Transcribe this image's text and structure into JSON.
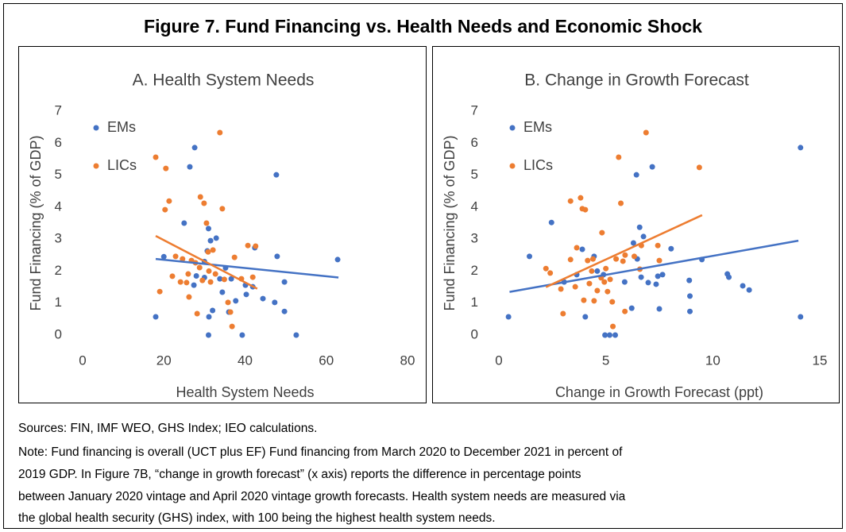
{
  "title": "Figure 7. Fund Financing vs. Health Needs and Economic Shock",
  "chart_data": [
    {
      "type": "scatter",
      "title": "A. Health System Needs",
      "x_label": "Health System Needs",
      "y_label": "Fund Financing (% of GDP)",
      "xlim": [
        0,
        80
      ],
      "xticks": [
        0,
        20,
        40,
        60,
        80
      ],
      "ylim": [
        0,
        7
      ],
      "yticks": [
        0,
        1,
        2,
        3,
        4,
        5,
        6,
        7
      ],
      "legend": "upper left",
      "grid": false,
      "series": [
        {
          "name": "EMs",
          "color": "#4472c4",
          "x": [
            18,
            20,
            25,
            27.4,
            28,
            30,
            30.7,
            31,
            31.5,
            31,
            31.1,
            32,
            26.4,
            27.6,
            32.9,
            33.8,
            34.4,
            35.2,
            36,
            36.6,
            37.7,
            39.3,
            40.1,
            40.3,
            41.9,
            42.4,
            44.4,
            47.3,
            47.9,
            47.7,
            49.7,
            49.7,
            52.6,
            62.8,
            30
          ],
          "values": [
            0.57,
            2.45,
            3.5,
            1.56,
            1.85,
            2.3,
            2.63,
            3.33,
            2.95,
            0,
            0.57,
            0.77,
            5.26,
            5.86,
            3.03,
            1.76,
            1.34,
            2.1,
            0.72,
            1.76,
            1.07,
            0,
            1.56,
            1.27,
            1.51,
            2.73,
            1.14,
            1.02,
            2.46,
            5.01,
            1.66,
            0.74,
            0,
            2.36,
            1.8
          ],
          "trend": {
            "x": [
              18,
              63
            ],
            "values": [
              2.38,
              1.8
            ]
          }
        },
        {
          "name": "LICs",
          "color": "#ed7d31",
          "x": [
            18,
            20.5,
            21.3,
            20.3,
            19,
            22.1,
            22.9,
            24.6,
            25.6,
            26.2,
            26.8,
            27.8,
            28.8,
            29.5,
            29,
            29.9,
            30.5,
            30.9,
            31.1,
            31.5,
            32.1,
            32.7,
            33.8,
            34.4,
            34.9,
            35.8,
            36.4,
            36.8,
            37.4,
            39.1,
            40.7,
            41.9,
            42.6,
            24.1,
            28.2,
            26
          ],
          "values": [
            5.56,
            5.21,
            4.19,
            3.92,
            1.36,
            1.84,
            2.46,
            2.38,
            1.64,
            1.19,
            2.33,
            2.26,
            2.11,
            1.71,
            4.32,
            4.12,
            3.5,
            2.6,
            2.0,
            1.66,
            2.66,
            1.91,
            6.33,
            3.95,
            1.74,
            1.02,
            0.72,
            0.27,
            2.43,
            1.76,
            2.8,
            1.81,
            2.78,
            1.66,
            0.67,
            1.91
          ],
          "trend": {
            "x": [
              18,
              43
            ],
            "values": [
              3.1,
              1.45
            ]
          }
        }
      ]
    },
    {
      "type": "scatter",
      "title": "B. Change in Growth Forecast",
      "x_label": "Change in Growth Forecast (ppt)",
      "y_label": "Fund Financing (% of GDP)",
      "xlim": [
        0,
        15
      ],
      "xticks": [
        0,
        5,
        10,
        15
      ],
      "ylim": [
        0,
        7
      ],
      "yticks": [
        0,
        1,
        2,
        3,
        4,
        5,
        6,
        7
      ],
      "legend": "upper left",
      "grid": false,
      "series": [
        {
          "name": "EMs",
          "color": "#4472c4",
          "x": [
            0.45,
            1.43,
            2.46,
            3.05,
            3.64,
            4.04,
            3.9,
            4.45,
            4.6,
            4.89,
            4.96,
            5.18,
            5.44,
            5.88,
            6.21,
            6.29,
            6.47,
            6.43,
            6.58,
            6.65,
            6.76,
            6.98,
            7.17,
            7.35,
            7.43,
            7.5,
            7.65,
            8.05,
            8.9,
            8.93,
            8.93,
            9.49,
            10.68,
            10.75,
            11.4,
            11.7,
            14.1,
            14.1
          ],
          "values": [
            0.57,
            2.46,
            3.52,
            1.66,
            1.89,
            0.57,
            2.68,
            2.46,
            2.0,
            1.89,
            0,
            0,
            0,
            1.66,
            0.84,
            2.88,
            2.38,
            5.01,
            3.37,
            1.81,
            3.08,
            1.64,
            5.26,
            1.59,
            1.84,
            0.82,
            1.89,
            2.7,
            1.71,
            0.74,
            1.22,
            2.36,
            1.91,
            1.81,
            1.54,
            1.41,
            5.86,
            0.57
          ],
          "trend": {
            "x": [
              0.5,
              14
            ],
            "values": [
              1.35,
              2.95
            ]
          }
        },
        {
          "name": "LICs",
          "color": "#ed7d31",
          "x": [
            2.2,
            2.4,
            2.9,
            3.0,
            3.35,
            3.35,
            3.57,
            3.64,
            3.82,
            3.9,
            3.97,
            4.04,
            4.15,
            4.23,
            4.34,
            4.4,
            4.45,
            4.6,
            4.78,
            4.82,
            4.93,
            5.0,
            5.08,
            5.2,
            5.3,
            5.33,
            5.48,
            5.6,
            5.7,
            5.8,
            5.9,
            5.89,
            6.33,
            6.59,
            6.66,
            6.88,
            7.43,
            7.5,
            9.37
          ],
          "values": [
            2.08,
            1.94,
            1.44,
            0.67,
            2.36,
            4.19,
            1.51,
            2.73,
            4.29,
            3.95,
            1.09,
            3.92,
            2.33,
            1.61,
            2.0,
            2.38,
            1.07,
            1.39,
            1.79,
            3.2,
            1.66,
            2.08,
            1.36,
            1.74,
            1.04,
            0.27,
            2.38,
            5.56,
            4.12,
            2.31,
            2.5,
            0.74,
            2.46,
            2.06,
            2.8,
            6.33,
            2.8,
            2.33,
            5.24
          ],
          "trend": {
            "x": [
              2.2,
              9.5
            ],
            "values": [
              1.5,
              3.75
            ]
          }
        }
      ]
    }
  ],
  "sources": "Sources: FIN, IMF WEO, GHS Index; IEO calculations.",
  "note": [
    "Note: Fund financing is overall (UCT plus EF) Fund financing from March 2020 to December 2021 in percent of",
    "2019 GDP. In Figure 7B, “change in growth forecast” (x axis) reports the difference in percentage points",
    "between January 2020 vintage and April 2020 vintage growth forecasts. Health system needs are measured via",
    "the global health security (GHS) index, with 100 being the highest health system needs."
  ]
}
